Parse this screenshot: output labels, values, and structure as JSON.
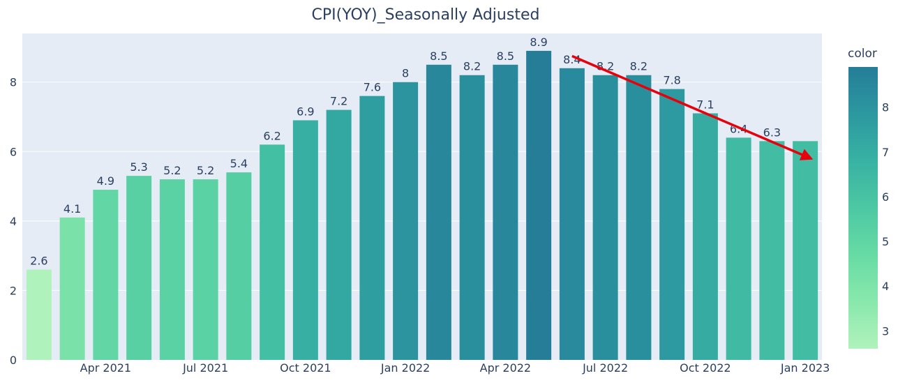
{
  "chart_data": {
    "type": "bar",
    "title": "CPI(YOY)_Seasonally Adjusted",
    "xlabel": "",
    "ylabel": "",
    "x": [
      "2021-02",
      "2021-03",
      "2021-04",
      "2021-05",
      "2021-06",
      "2021-07",
      "2021-08",
      "2021-09",
      "2021-10",
      "2021-11",
      "2021-12",
      "2022-01",
      "2022-02",
      "2022-03",
      "2022-04",
      "2022-05",
      "2022-06",
      "2022-07",
      "2022-08",
      "2022-09",
      "2022-10",
      "2022-11",
      "2022-12",
      "2023-01"
    ],
    "values": [
      2.6,
      4.1,
      4.9,
      5.3,
      5.2,
      5.2,
      5.4,
      6.2,
      6.9,
      7.2,
      7.6,
      8.0,
      8.5,
      8.2,
      8.5,
      8.9,
      8.4,
      8.2,
      8.2,
      7.8,
      7.1,
      6.4,
      6.3,
      6.3
    ],
    "labels": [
      "2.6",
      "4.1",
      "4.9",
      "5.3",
      "5.2",
      "5.2",
      "5.4",
      "6.2",
      "6.9",
      "7.2",
      "7.6",
      "8",
      "8.5",
      "8.2",
      "8.5",
      "8.9",
      "8.4",
      "8.2",
      "8.2",
      "7.8",
      "7.1",
      "6.4",
      "6.3",
      ""
    ],
    "xticks": [
      {
        "date": "2021-04",
        "label": "Apr 2021"
      },
      {
        "date": "2021-07",
        "label": "Jul 2021"
      },
      {
        "date": "2021-10",
        "label": "Oct 2021"
      },
      {
        "date": "2022-01",
        "label": "Jan 2022"
      },
      {
        "date": "2022-04",
        "label": "Apr 2022"
      },
      {
        "date": "2022-07",
        "label": "Jul 2022"
      },
      {
        "date": "2022-10",
        "label": "Oct 2022"
      },
      {
        "date": "2023-01",
        "label": "Jan 2023"
      }
    ],
    "ylim": [
      0,
      9.4
    ],
    "yticks": [
      0,
      2,
      4,
      6,
      8
    ],
    "grid": true,
    "colorscale": [
      "#b0f2bc",
      "#89e8ac",
      "#67dba5",
      "#4cc8a3",
      "#38b2a3",
      "#2c98a0",
      "#257d98"
    ],
    "colorbar": {
      "title": "color",
      "range": [
        2.6,
        8.9
      ],
      "ticks": [
        3,
        4,
        5,
        6,
        7,
        8
      ]
    },
    "annotation": {
      "type": "arrow",
      "from": {
        "date": "2022-06",
        "value": 8.75
      },
      "to": {
        "date": "2023-01",
        "value": 5.8
      },
      "color": "#e8000b"
    },
    "colors": {
      "plot_bg": "#e5ecf6",
      "text": "#2a3f5f",
      "grid": "#ffffff"
    }
  }
}
